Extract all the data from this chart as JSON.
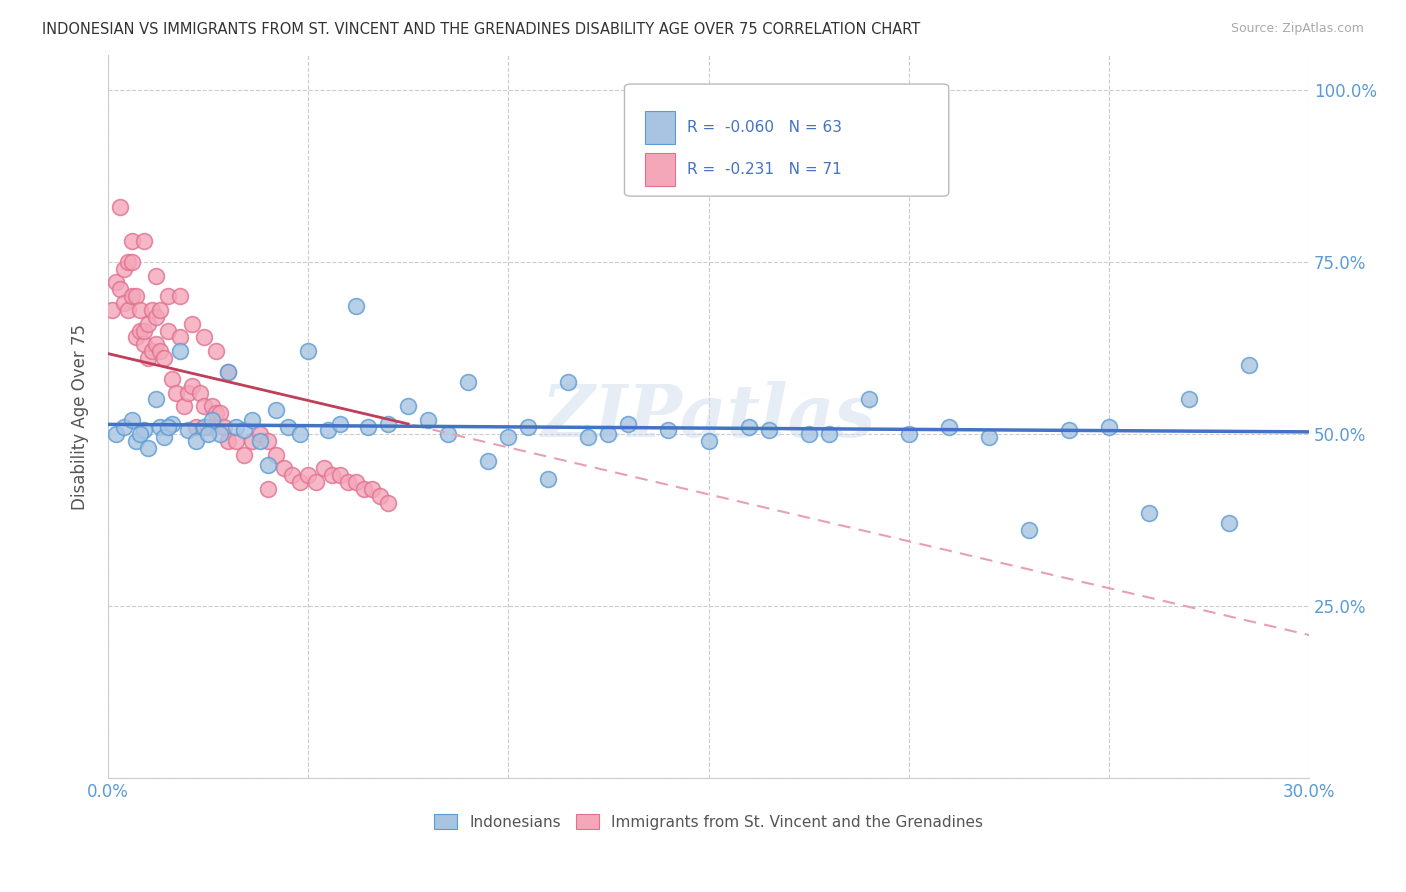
{
  "title": "INDONESIAN VS IMMIGRANTS FROM ST. VINCENT AND THE GRENADINES DISABILITY AGE OVER 75 CORRELATION CHART",
  "source": "Source: ZipAtlas.com",
  "ylabel": "Disability Age Over 75",
  "legend_labels": [
    "Indonesians",
    "Immigrants from St. Vincent and the Grenadines"
  ],
  "xlim": [
    0.0,
    0.3
  ],
  "ylim": [
    0.0,
    1.05
  ],
  "xtick_positions": [
    0.0,
    0.05,
    0.1,
    0.15,
    0.2,
    0.25,
    0.3
  ],
  "xticklabels": [
    "0.0%",
    "",
    "",
    "",
    "",
    "",
    "30.0%"
  ],
  "ytick_positions": [
    0.0,
    0.25,
    0.5,
    0.75,
    1.0
  ],
  "yticklabels_right": [
    "",
    "25.0%",
    "50.0%",
    "75.0%",
    "100.0%"
  ],
  "color_blue_fill": "#a8c4e0",
  "color_blue_edge": "#5b9bd5",
  "color_pink_fill": "#f4a7b9",
  "color_pink_edge": "#e07090",
  "color_blue_line": "#4472c4",
  "color_pink_line_solid": "#c0405a",
  "color_pink_line_dash": "#e8a0b0",
  "watermark": "ZIPatlas",
  "legend_r_blue": "R =  -0.060",
  "legend_n_blue": "N = 63",
  "legend_r_pink": "R =  -0.231",
  "legend_n_pink": "N = 71",
  "R_blue": -0.06,
  "R_pink": -0.231,
  "N_blue": 63,
  "N_pink": 71,
  "indo_x": [
    0.002,
    0.004,
    0.006,
    0.007,
    0.009,
    0.01,
    0.012,
    0.013,
    0.014,
    0.016,
    0.018,
    0.02,
    0.022,
    0.024,
    0.026,
    0.028,
    0.03,
    0.032,
    0.034,
    0.036,
    0.038,
    0.04,
    0.042,
    0.045,
    0.048,
    0.05,
    0.055,
    0.058,
    0.062,
    0.065,
    0.07,
    0.075,
    0.08,
    0.085,
    0.09,
    0.095,
    0.1,
    0.105,
    0.11,
    0.115,
    0.12,
    0.125,
    0.13,
    0.14,
    0.15,
    0.16,
    0.165,
    0.175,
    0.18,
    0.19,
    0.2,
    0.21,
    0.22,
    0.23,
    0.24,
    0.25,
    0.26,
    0.27,
    0.28,
    0.285,
    0.008,
    0.015,
    0.025
  ],
  "indo_y": [
    0.5,
    0.51,
    0.52,
    0.49,
    0.505,
    0.48,
    0.55,
    0.51,
    0.495,
    0.515,
    0.62,
    0.505,
    0.49,
    0.51,
    0.52,
    0.5,
    0.59,
    0.51,
    0.505,
    0.52,
    0.49,
    0.455,
    0.535,
    0.51,
    0.5,
    0.62,
    0.505,
    0.515,
    0.685,
    0.51,
    0.515,
    0.54,
    0.52,
    0.5,
    0.575,
    0.46,
    0.495,
    0.51,
    0.435,
    0.575,
    0.495,
    0.5,
    0.515,
    0.505,
    0.49,
    0.51,
    0.505,
    0.5,
    0.5,
    0.55,
    0.5,
    0.51,
    0.495,
    0.36,
    0.505,
    0.51,
    0.385,
    0.55,
    0.37,
    0.6,
    0.5,
    0.51,
    0.5
  ],
  "svg_x": [
    0.001,
    0.002,
    0.003,
    0.004,
    0.004,
    0.005,
    0.005,
    0.006,
    0.006,
    0.007,
    0.007,
    0.008,
    0.008,
    0.009,
    0.009,
    0.01,
    0.01,
    0.011,
    0.011,
    0.012,
    0.012,
    0.013,
    0.013,
    0.014,
    0.015,
    0.016,
    0.017,
    0.018,
    0.019,
    0.02,
    0.021,
    0.022,
    0.023,
    0.024,
    0.025,
    0.026,
    0.027,
    0.028,
    0.029,
    0.03,
    0.032,
    0.034,
    0.036,
    0.038,
    0.04,
    0.042,
    0.044,
    0.046,
    0.048,
    0.05,
    0.052,
    0.054,
    0.056,
    0.058,
    0.06,
    0.062,
    0.064,
    0.066,
    0.068,
    0.07,
    0.003,
    0.006,
    0.009,
    0.012,
    0.015,
    0.018,
    0.021,
    0.024,
    0.027,
    0.03,
    0.04
  ],
  "svg_y": [
    0.68,
    0.72,
    0.71,
    0.69,
    0.74,
    0.75,
    0.68,
    0.7,
    0.75,
    0.7,
    0.64,
    0.65,
    0.68,
    0.63,
    0.65,
    0.66,
    0.61,
    0.68,
    0.62,
    0.67,
    0.63,
    0.68,
    0.62,
    0.61,
    0.65,
    0.58,
    0.56,
    0.64,
    0.54,
    0.56,
    0.57,
    0.51,
    0.56,
    0.54,
    0.51,
    0.54,
    0.53,
    0.53,
    0.51,
    0.49,
    0.49,
    0.47,
    0.49,
    0.5,
    0.49,
    0.47,
    0.45,
    0.44,
    0.43,
    0.44,
    0.43,
    0.45,
    0.44,
    0.44,
    0.43,
    0.43,
    0.42,
    0.42,
    0.41,
    0.4,
    0.83,
    0.78,
    0.78,
    0.73,
    0.7,
    0.7,
    0.66,
    0.64,
    0.62,
    0.59,
    0.42
  ]
}
